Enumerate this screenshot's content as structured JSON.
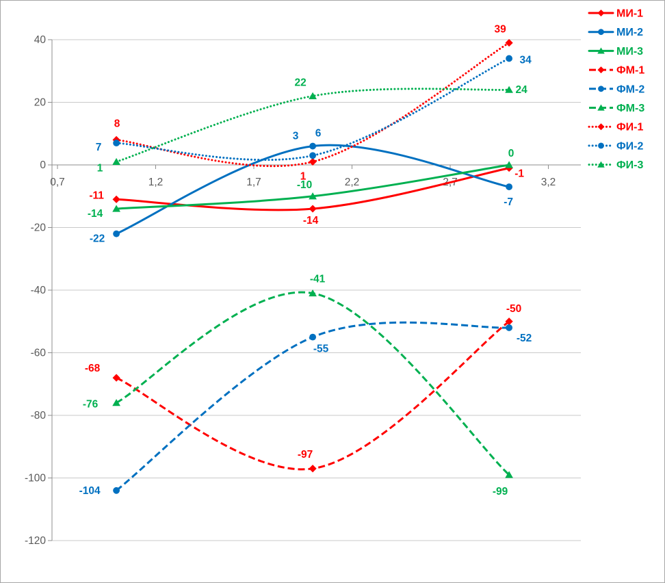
{
  "chart_data": {
    "type": "line",
    "title": "",
    "x": [
      1,
      2,
      3
    ],
    "x_axis": {
      "tick_values": [
        0.7,
        1.2,
        1.7,
        2.2,
        2.7,
        3.2
      ],
      "tick_labels": [
        "0,7",
        "1,2",
        "1,7",
        "2,2",
        "2,7",
        "3,2"
      ],
      "min": 0.7,
      "max": 3.2
    },
    "y_axis": {
      "tick_values": [
        40,
        20,
        0,
        -20,
        -40,
        -60,
        -80,
        -100,
        -120
      ],
      "tick_labels": [
        "40",
        "20",
        "0",
        "-20",
        "-40",
        "-60",
        "-80",
        "-100",
        "-120"
      ],
      "min": -120,
      "max": 40
    },
    "grid": true,
    "legend_position": "right",
    "series": [
      {
        "name": "МИ-1",
        "color": "#FF0000",
        "line": "solid",
        "marker": "diamond",
        "values": [
          -11,
          -14,
          -1
        ]
      },
      {
        "name": "МИ-2",
        "color": "#0070C0",
        "line": "solid",
        "marker": "circle",
        "values": [
          -22,
          6,
          -7
        ]
      },
      {
        "name": "МИ-3",
        "color": "#00B050",
        "line": "solid",
        "marker": "triangle",
        "values": [
          -14,
          -10,
          0
        ]
      },
      {
        "name": "ФМ-1",
        "color": "#FF0000",
        "line": "dashed",
        "marker": "diamond",
        "values": [
          -68,
          -97,
          -50
        ]
      },
      {
        "name": "ФМ-2",
        "color": "#0070C0",
        "line": "dashed",
        "marker": "circle",
        "values": [
          -104,
          -55,
          -52
        ]
      },
      {
        "name": "ФМ-3",
        "color": "#00B050",
        "line": "dashed",
        "marker": "triangle",
        "values": [
          -76,
          -41,
          -99
        ]
      },
      {
        "name": "ФИ-1",
        "color": "#FF0000",
        "line": "dotted",
        "marker": "diamond",
        "values": [
          8,
          1,
          39
        ]
      },
      {
        "name": "ФИ-2",
        "color": "#0070C0",
        "line": "dotted",
        "marker": "circle",
        "values": [
          7,
          3,
          34
        ]
      },
      {
        "name": "ФИ-3",
        "color": "#00B050",
        "line": "dotted",
        "marker": "triangle",
        "values": [
          1,
          22,
          24
        ]
      }
    ],
    "data_labels_shown": true,
    "colors": {
      "gridline": "#c9c9c9",
      "axis": "#8e8e8e",
      "axis_text": "#595959",
      "background": "#ffffff",
      "border": "#a6a6a6"
    }
  }
}
